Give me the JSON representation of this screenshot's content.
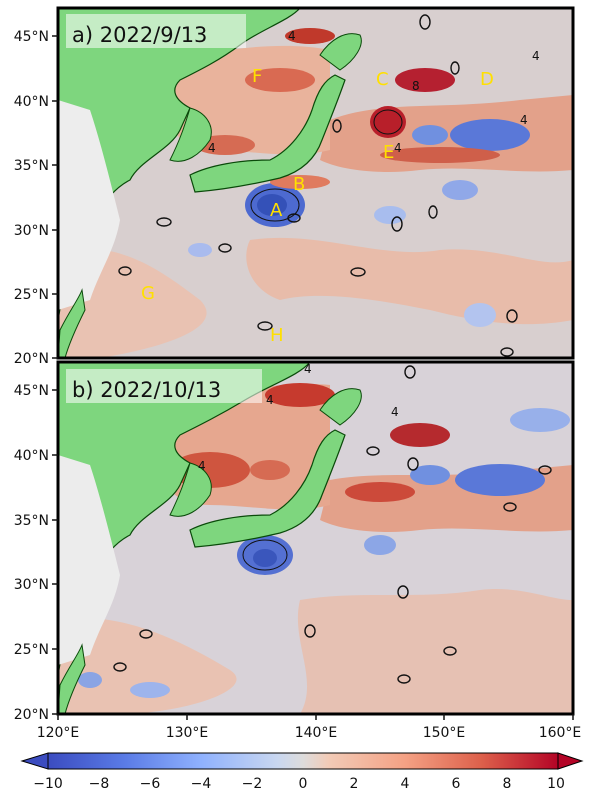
{
  "panels": [
    {
      "label": "a) 2022/9/13",
      "regions": [
        "A",
        "B",
        "C",
        "D",
        "E",
        "F",
        "G",
        "H"
      ],
      "contour_labels": [
        "4",
        "4",
        "4",
        "8",
        "0",
        "0",
        "0",
        "0",
        "4",
        "4"
      ]
    },
    {
      "label": "b) 2022/10/13",
      "regions": [],
      "contour_labels": [
        "4",
        "4",
        "4",
        "4",
        "0",
        "0",
        "0",
        "0",
        "0",
        "0"
      ]
    }
  ],
  "lat_ticks": [
    "20°N",
    "25°N",
    "30°N",
    "35°N",
    "40°N",
    "45°N"
  ],
  "lon_ticks": [
    "120°E",
    "130°E",
    "140°E",
    "150°E",
    "160°E"
  ],
  "map_extent": {
    "lon": [
      120,
      160
    ],
    "lat": [
      20,
      47
    ]
  },
  "colorbar": {
    "ticks": [
      "−10",
      "−8",
      "−6",
      "−4",
      "−2",
      "0",
      "2",
      "4",
      "6",
      "8",
      "10"
    ],
    "range": [
      -10,
      10
    ],
    "extend": "both",
    "colormap": [
      "#3b4cc0",
      "#6788ee",
      "#9abbff",
      "#c9d7f0",
      "#edd1c2",
      "#f7a889",
      "#e26952",
      "#b40426"
    ]
  },
  "colors": {
    "land": "#7ed67e",
    "coast": "#0a4a0a",
    "ocean_neutral": "#dcd2d2",
    "warm": "#d9805f",
    "cold": "#5575d4",
    "label_yellow": "#ffe000"
  }
}
